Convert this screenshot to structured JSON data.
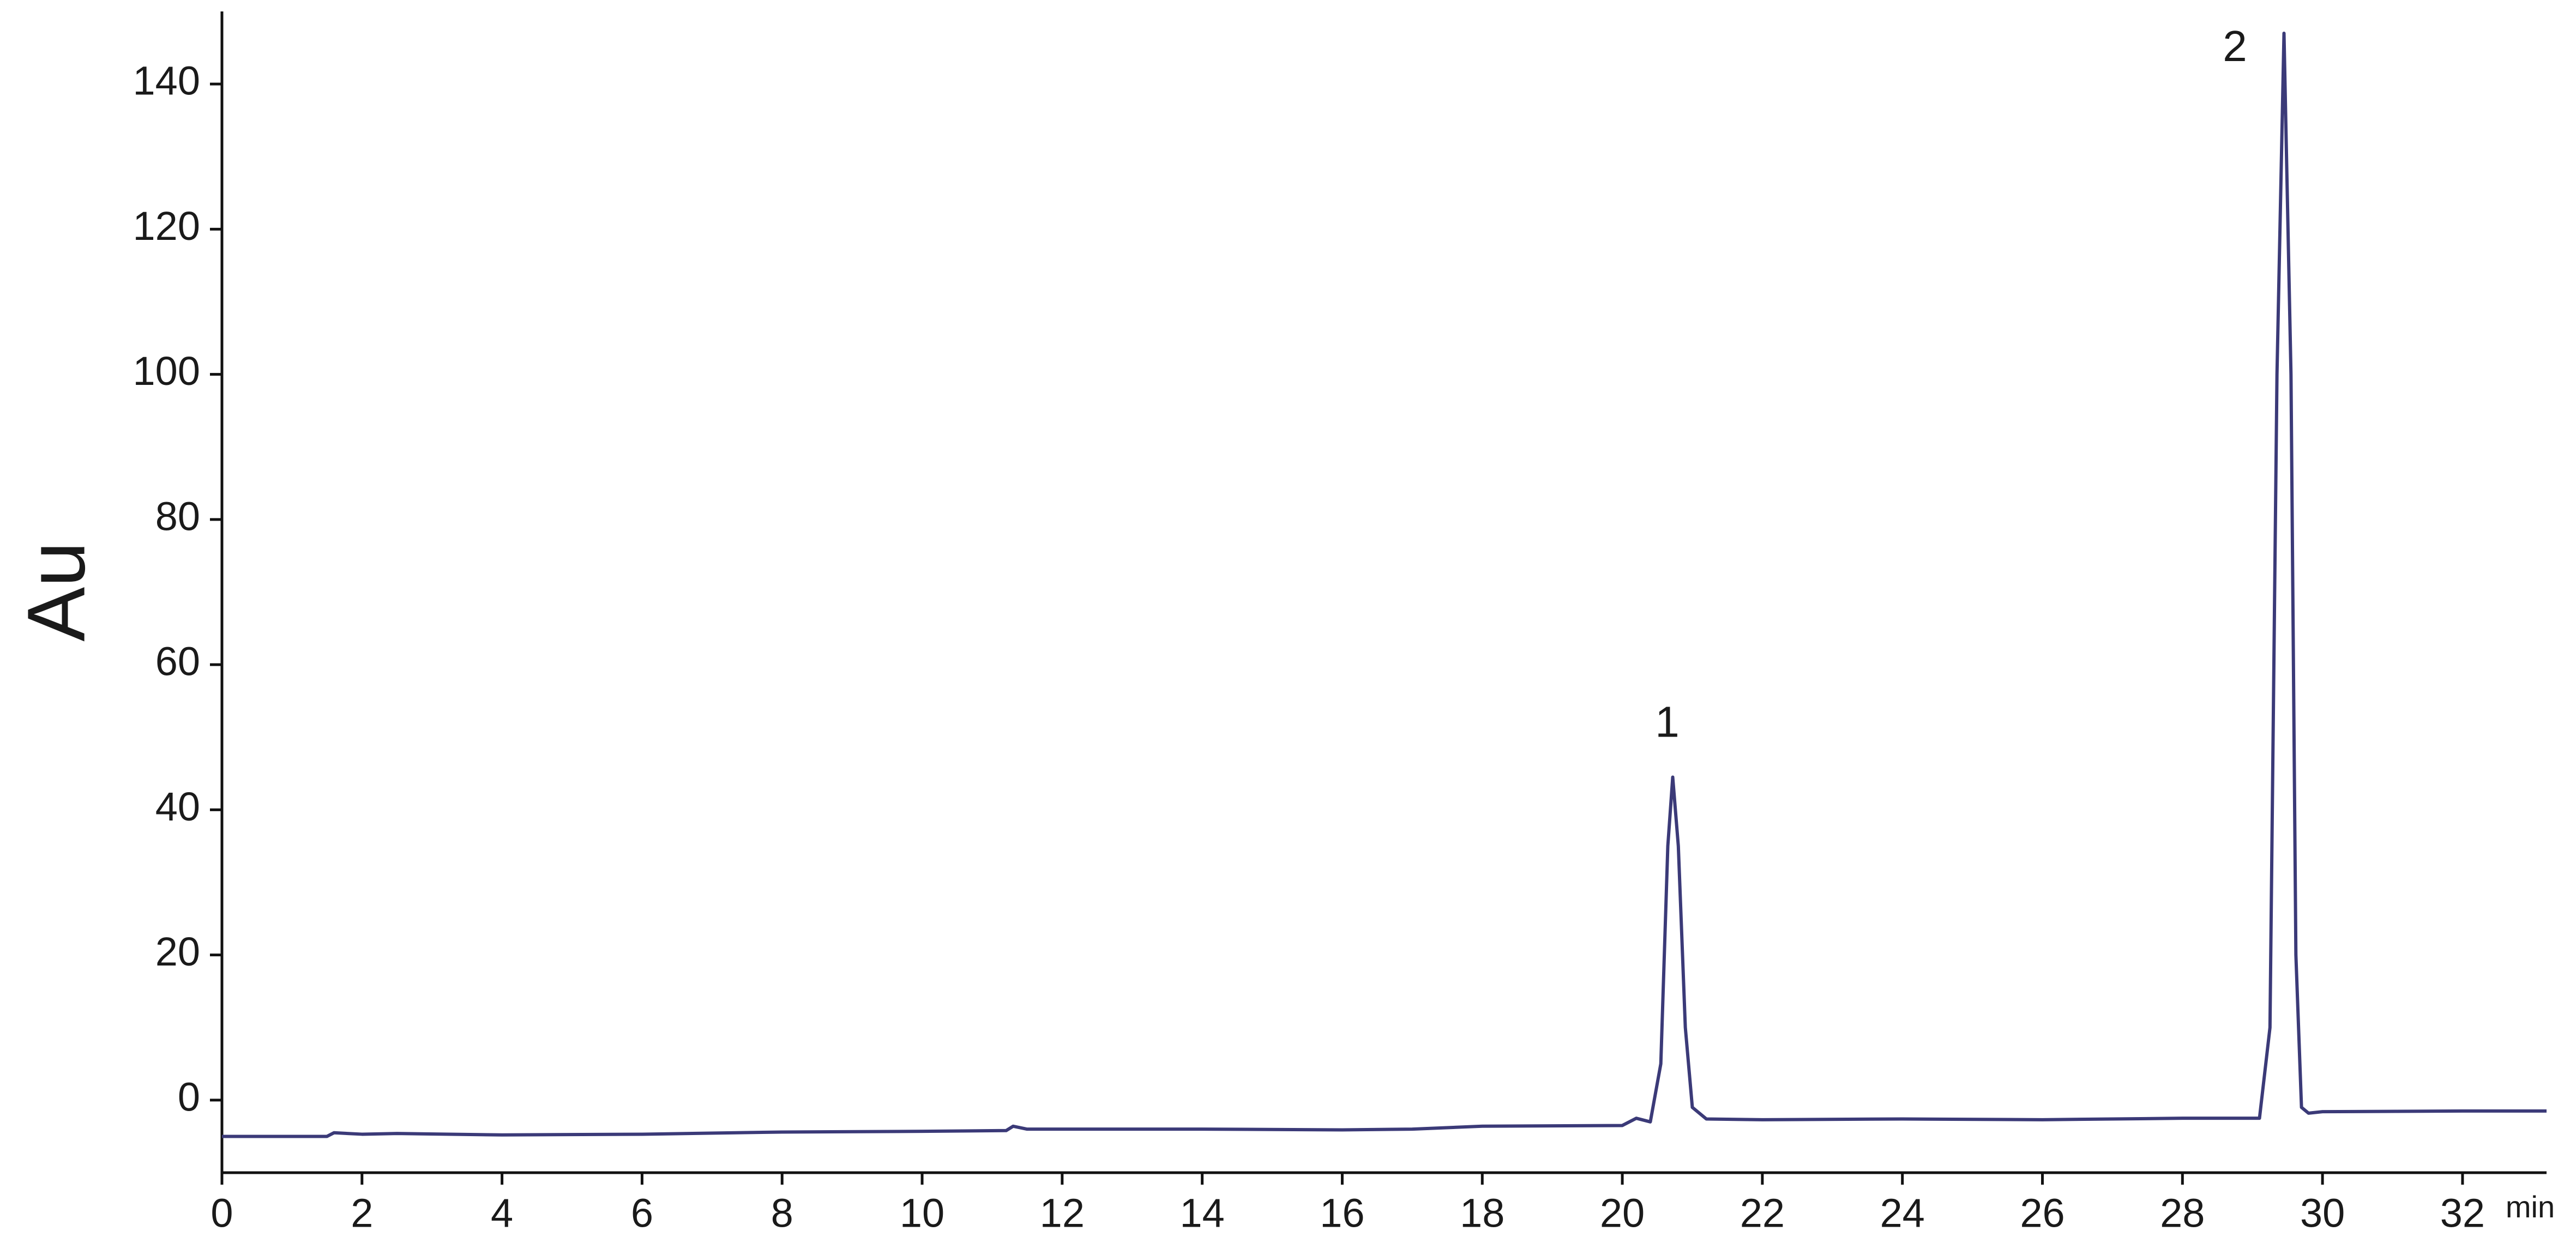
{
  "chart_data": {
    "type": "line",
    "x_label": "min",
    "y_label": "Au",
    "color": "#3b3a78",
    "x": [
      0,
      1.5,
      1.6,
      2,
      2.5,
      4,
      6,
      8,
      10,
      11.2,
      11.3,
      11.5,
      14,
      16,
      17,
      18,
      20,
      20.2,
      20.4,
      20.55,
      20.65,
      20.72,
      20.8,
      20.9,
      21,
      21.2,
      22,
      24,
      26,
      28,
      29.1,
      29.25,
      29.35,
      29.45,
      29.55,
      29.62,
      29.7,
      29.8,
      30,
      32,
      33.2
    ],
    "values": [
      -5,
      -5,
      -4.5,
      -4.7,
      -4.6,
      -4.8,
      -4.7,
      -4.4,
      -4.3,
      -4.2,
      -3.6,
      -4,
      -4,
      -4.1,
      -4,
      -3.6,
      -3.5,
      -2.5,
      -3,
      5,
      35,
      44.5,
      35,
      10,
      -1,
      -2.6,
      -2.7,
      -2.6,
      -2.7,
      -2.5,
      -2.5,
      10,
      100,
      147,
      100,
      20,
      -1,
      -1.8,
      -1.6,
      -1.5,
      -1.5
    ],
    "annotations": [
      "1",
      "2"
    ],
    "xlim": [
      0,
      33.2
    ],
    "ylim": [
      -10,
      150
    ],
    "xticks": [
      0,
      2,
      4,
      6,
      8,
      10,
      12,
      14,
      16,
      18,
      20,
      22,
      24,
      26,
      28,
      30,
      32
    ],
    "yticks": [
      0,
      20,
      40,
      60,
      80,
      100,
      120,
      140
    ]
  }
}
